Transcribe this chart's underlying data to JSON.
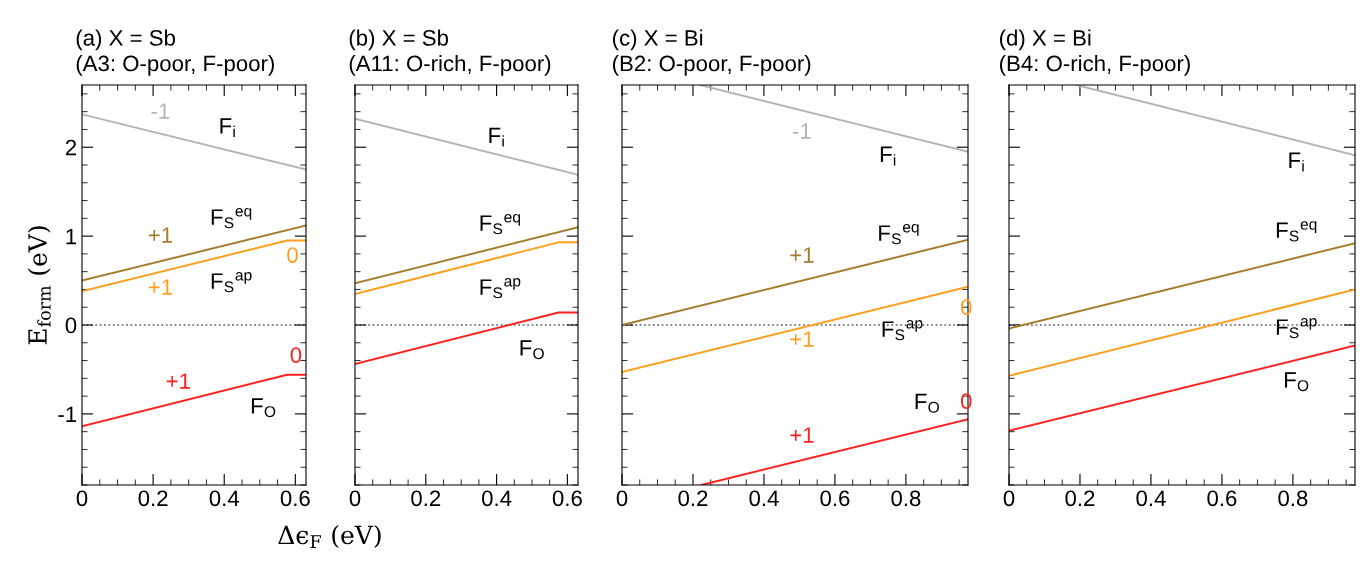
{
  "chart_data": [
    {
      "type": "line",
      "title": "(a) X = Sb",
      "subtitle": "(A3: O-poor, F-poor)",
      "ylabel": "E$_{form}$ (eV)",
      "xlabel": "Δϵ$_{F}$ (eV)",
      "xlim": [
        0,
        0.63
      ],
      "ylim": [
        -1.8,
        2.7
      ],
      "xticks": [
        0,
        0.2,
        0.4,
        0.6
      ],
      "yticks": [
        -1,
        0,
        1,
        2
      ],
      "series": [
        {
          "name": "F$_{i}$",
          "color": "#b4b4b4",
          "x": [
            0,
            0.63
          ],
          "values": [
            2.37,
            1.75
          ]
        },
        {
          "name": "F$_{S}$$^{eq}$",
          "color": "#a57c2b",
          "x": [
            0,
            0.63
          ],
          "values": [
            0.5,
            1.12
          ]
        },
        {
          "name": "F$_{S}$$^{ap}$",
          "color": "#ff9e1b",
          "x": [
            0,
            0.577,
            0.63
          ],
          "values": [
            0.38,
            0.95,
            0.95
          ]
        },
        {
          "name": "F$_{O}$",
          "color": "#ff2020",
          "x": [
            0,
            0.577,
            0.63
          ],
          "values": [
            -1.14,
            -0.56,
            -0.56
          ]
        }
      ],
      "ref_lines": [
        {
          "axis": "y",
          "value": 0,
          "color": "#555555",
          "line_style": "dotted"
        }
      ],
      "annotations": [
        "-1",
        "+1",
        "0",
        "+1",
        "0",
        "+1"
      ]
    },
    {
      "type": "line",
      "title": "(b) X = Sb",
      "subtitle": "(A11: O-rich, F-poor)",
      "xlim": [
        0,
        0.63
      ],
      "ylim": [
        -1.8,
        2.7
      ],
      "xticks": [
        0,
        0.2,
        0.4,
        0.6
      ],
      "yticks": [
        -1,
        0,
        1,
        2
      ],
      "tick_labels": "x",
      "series": [
        {
          "name": "F$_{i}$",
          "color": "#b4b4b4",
          "x": [
            0,
            0.63
          ],
          "values": [
            2.32,
            1.69
          ]
        },
        {
          "name": "F$_{S}$$^{eq}$",
          "color": "#a57c2b",
          "x": [
            0,
            0.63
          ],
          "values": [
            0.47,
            1.1
          ]
        },
        {
          "name": "F$_{S}$$^{ap}$",
          "color": "#ff9e1b",
          "x": [
            0,
            0.575,
            0.63
          ],
          "values": [
            0.35,
            0.93,
            0.93
          ]
        },
        {
          "name": "F$_{O}$",
          "color": "#ff2020",
          "x": [
            0,
            0.575,
            0.63
          ],
          "values": [
            -0.44,
            0.14,
            0.14
          ]
        }
      ],
      "ref_lines": [
        {
          "axis": "y",
          "value": 0,
          "color": "#555555",
          "line_style": "dotted"
        }
      ]
    },
    {
      "type": "line",
      "title": "(c) X = Bi",
      "subtitle": "(B2: O-poor, F-poor)",
      "xlim": [
        0,
        0.975
      ],
      "ylim": [
        -1.8,
        2.7
      ],
      "xticks": [
        0,
        0.2,
        0.4,
        0.6,
        0.8
      ],
      "yticks": [
        -1,
        0,
        1,
        2
      ],
      "tick_labels": "x",
      "series": [
        {
          "name": "F$_{i}$",
          "color": "#b4b4b4",
          "x": [
            0.22,
            0.975
          ],
          "values": [
            2.7,
            1.95
          ]
        },
        {
          "name": "F$_{S}$$^{eq}$",
          "color": "#a57c2b",
          "x": [
            0,
            0.975
          ],
          "values": [
            0.0,
            0.96
          ]
        },
        {
          "name": "F$_{S}$$^{ap}$",
          "color": "#ff9e1b",
          "x": [
            0,
            0.975
          ],
          "values": [
            -0.53,
            0.43
          ]
        },
        {
          "name": "F$_{O}$",
          "color": "#ff2020",
          "x": [
            0.224,
            0.975
          ],
          "values": [
            -1.8,
            -1.06
          ]
        }
      ],
      "ref_lines": [
        {
          "axis": "y",
          "value": 0,
          "color": "#555555",
          "line_style": "dotted"
        }
      ],
      "annotations": [
        "-1",
        "+1",
        "0",
        "+1",
        "0",
        "+1"
      ]
    },
    {
      "type": "line",
      "title": "(d) X = Bi",
      "subtitle": "(B4: O-rich, F-poor)",
      "xlim": [
        0,
        0.975
      ],
      "ylim": [
        -1.8,
        2.7
      ],
      "xticks": [
        0,
        0.2,
        0.4,
        0.6,
        0.8
      ],
      "yticks": [
        -1,
        0,
        1,
        2
      ],
      "tick_labels": "x",
      "series": [
        {
          "name": "F$_{i}$",
          "color": "#b4b4b4",
          "x": [
            0.19,
            0.975
          ],
          "values": [
            2.7,
            1.91
          ]
        },
        {
          "name": "F$_{S}$$^{eq}$",
          "color": "#a57c2b",
          "x": [
            0,
            0.975
          ],
          "values": [
            -0.04,
            0.92
          ]
        },
        {
          "name": "F$_{S}$$^{ap}$",
          "color": "#ff9e1b",
          "x": [
            0,
            0.975
          ],
          "values": [
            -0.57,
            0.4
          ]
        },
        {
          "name": "F$_{O}$",
          "color": "#ff2020",
          "x": [
            0,
            0.975
          ],
          "values": [
            -1.19,
            -0.23
          ]
        }
      ],
      "ref_lines": [
        {
          "axis": "y",
          "value": 0,
          "color": "#555555",
          "line_style": "dotted"
        }
      ]
    }
  ]
}
